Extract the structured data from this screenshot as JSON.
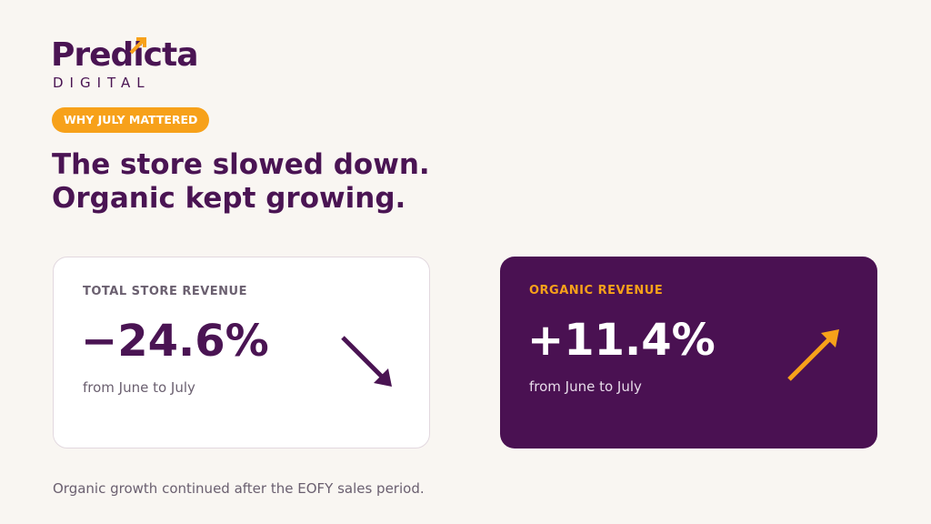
{
  "logo": {
    "name": "Predicta",
    "sub": "DIGITAL"
  },
  "badge": "WHY JULY MATTERED",
  "headline": [
    "The store slowed down.",
    "Organic kept growing."
  ],
  "cards": [
    {
      "label": "TOTAL STORE REVENUE",
      "value": "−24.6%",
      "note": "from June to July"
    },
    {
      "label": "ORGANIC REVENUE",
      "value": "+11.4%",
      "note": "from June to July"
    }
  ],
  "footer": "Organic growth continued after the EOFY sales period."
}
